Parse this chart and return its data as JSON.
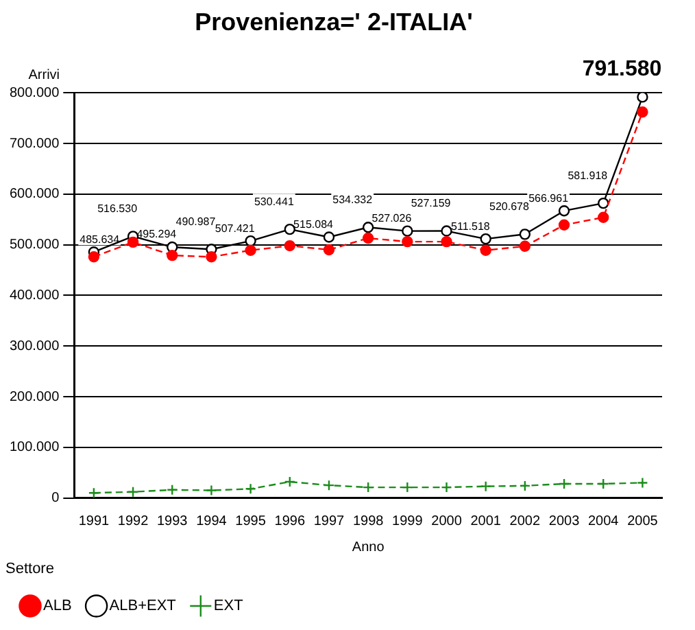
{
  "chart_data": {
    "type": "line",
    "title": "Provenienza=' 2-ITALIA'",
    "xlabel": "Anno",
    "ylabel": "Arrivi",
    "legend_title": "Settore",
    "categories": [
      "1991",
      "1992",
      "1993",
      "1994",
      "1995",
      "1996",
      "1997",
      "1998",
      "1999",
      "2000",
      "2001",
      "2002",
      "2003",
      "2004",
      "2005"
    ],
    "series": [
      {
        "name": "ALB",
        "color": "#ff0000",
        "marker": "circle",
        "line_style": "dashed",
        "values": [
          476000,
          505000,
          479000,
          476000,
          489000,
          498000,
          490000,
          513000,
          506000,
          506000,
          489000,
          497000,
          539000,
          554000,
          762000
        ]
      },
      {
        "name": "ALB+EXT",
        "color": "#000000",
        "marker": "circle",
        "line_style": "solid",
        "values": [
          485634,
          516530,
          495294,
          490987,
          507421,
          530441,
          515084,
          534332,
          527026,
          527159,
          511518,
          520678,
          566961,
          581918,
          791580
        ],
        "value_labels": [
          "485.634",
          "516.530",
          "495.294",
          "490.987",
          "507.421",
          "530.441",
          "515.084",
          "534.332",
          "527.026",
          "527.159",
          "511.518",
          "520.678",
          "566.961",
          "581.918",
          null
        ]
      },
      {
        "name": "EXT",
        "color": "#1a8c1a",
        "marker": "cross",
        "line_style": "dashed",
        "values": [
          10000,
          12000,
          16000,
          15000,
          18000,
          32000,
          25000,
          21000,
          21000,
          21000,
          23000,
          24000,
          28000,
          28000,
          30000
        ]
      }
    ],
    "ylim": [
      0,
      800000
    ],
    "yticks": [
      {
        "value": 0,
        "label": "0"
      },
      {
        "value": 100000,
        "label": "100.000"
      },
      {
        "value": 200000,
        "label": "200.000"
      },
      {
        "value": 300000,
        "label": "300.000"
      },
      {
        "value": 400000,
        "label": "400.000"
      },
      {
        "value": 500000,
        "label": "500.000"
      },
      {
        "value": 600000,
        "label": "600.000"
      },
      {
        "value": 700000,
        "label": "700.000"
      },
      {
        "value": 800000,
        "label": "800.000"
      }
    ],
    "grid": "y",
    "legend": "bottom",
    "annotations": [
      {
        "text": "791.580",
        "x": "2005",
        "y": 791580
      }
    ]
  }
}
